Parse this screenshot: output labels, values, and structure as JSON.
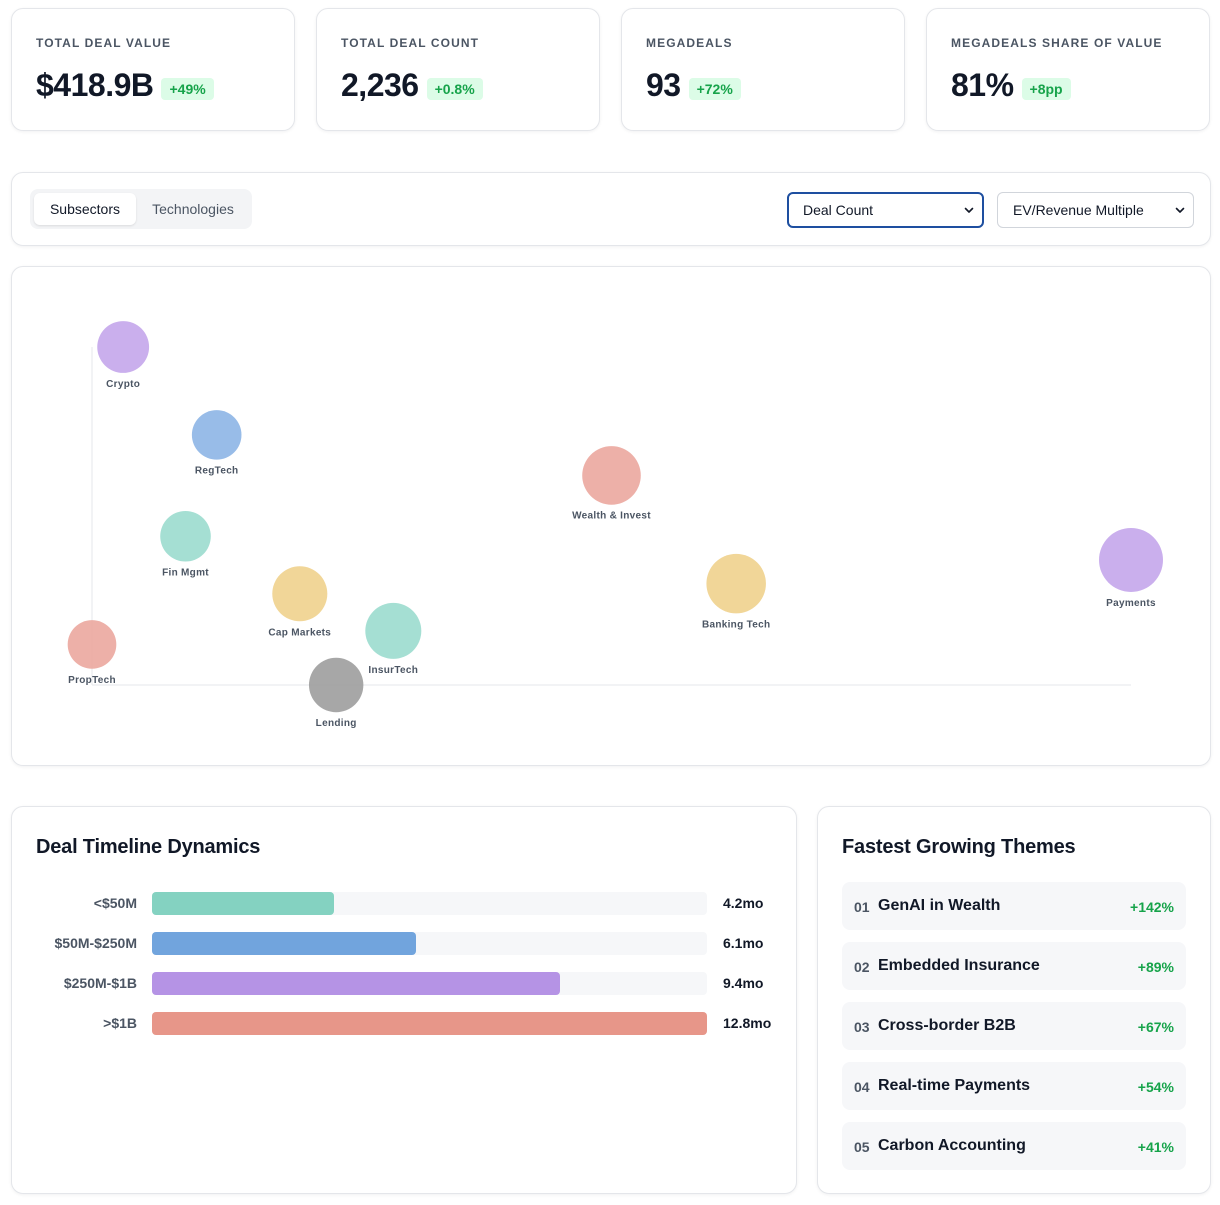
{
  "kpis": [
    {
      "label": "TOTAL DEAL VALUE",
      "value": "$418.9B",
      "change": "+49%"
    },
    {
      "label": "TOTAL DEAL COUNT",
      "value": "2,236",
      "change": "+0.8%"
    },
    {
      "label": "MEGADEALS",
      "value": "93",
      "change": "+72%"
    },
    {
      "label": "MEGADEALS SHARE OF VALUE",
      "value": "81%",
      "change": "+8pp"
    }
  ],
  "controls": {
    "tabs": [
      {
        "label": "Subsectors",
        "active": true
      },
      {
        "label": "Technologies",
        "active": false
      }
    ],
    "x_metric": {
      "selected": "Deal Count"
    },
    "y_metric": {
      "selected": "EV/Revenue Multiple"
    }
  },
  "chart_data": {
    "type": "scatter",
    "points": [
      {
        "name": "Crypto",
        "x": 0.03,
        "y": 1.0,
        "size": 0.62,
        "color": "#c4a6eb"
      },
      {
        "name": "RegTech",
        "x": 0.12,
        "y": 0.74,
        "size": 0.55,
        "color": "#8db5e6"
      },
      {
        "name": "Wealth & Invest",
        "x": 0.5,
        "y": 0.62,
        "size": 0.83,
        "color": "#eba79f"
      },
      {
        "name": "Fin Mgmt",
        "x": 0.09,
        "y": 0.44,
        "size": 0.58,
        "color": "#9bdcce"
      },
      {
        "name": "Payments",
        "x": 1.0,
        "y": 0.37,
        "size": 1.0,
        "color": "#c4a6eb"
      },
      {
        "name": "Banking Tech",
        "x": 0.62,
        "y": 0.3,
        "size": 0.86,
        "color": "#f0d18d"
      },
      {
        "name": "Cap Markets",
        "x": 0.2,
        "y": 0.27,
        "size": 0.72,
        "color": "#f0d18d"
      },
      {
        "name": "InsurTech",
        "x": 0.29,
        "y": 0.16,
        "size": 0.75,
        "color": "#9bdcce"
      },
      {
        "name": "PropTech",
        "x": 0.0,
        "y": 0.12,
        "size": 0.52,
        "color": "#eba79f"
      },
      {
        "name": "Lending",
        "x": 0.235,
        "y": 0.0,
        "size": 0.7,
        "color": "#9d9d9d"
      }
    ]
  },
  "timeline": {
    "title": "Deal Timeline Dynamics",
    "rows": [
      {
        "label": "<$50M",
        "value": 4.2,
        "display": "4.2mo",
        "color": "#84d2c1"
      },
      {
        "label": "$50M-$250M",
        "value": 6.1,
        "display": "6.1mo",
        "color": "#71a4dd"
      },
      {
        "label": "$250M-$1B",
        "value": 9.4,
        "display": "9.4mo",
        "color": "#b593e5"
      },
      {
        "label": ">$1B",
        "value": 12.8,
        "display": "12.8mo",
        "color": "#e79689"
      }
    ],
    "max": 12.8
  },
  "themes": {
    "title": "Fastest Growing Themes",
    "items": [
      {
        "num": "01",
        "name": "GenAI in Wealth",
        "growth": "+142%"
      },
      {
        "num": "02",
        "name": "Embedded Insurance",
        "growth": "+89%"
      },
      {
        "num": "03",
        "name": "Cross-border B2B",
        "growth": "+67%"
      },
      {
        "num": "04",
        "name": "Real-time Payments",
        "growth": "+54%"
      },
      {
        "num": "05",
        "name": "Carbon Accounting",
        "growth": "+41%"
      }
    ]
  }
}
